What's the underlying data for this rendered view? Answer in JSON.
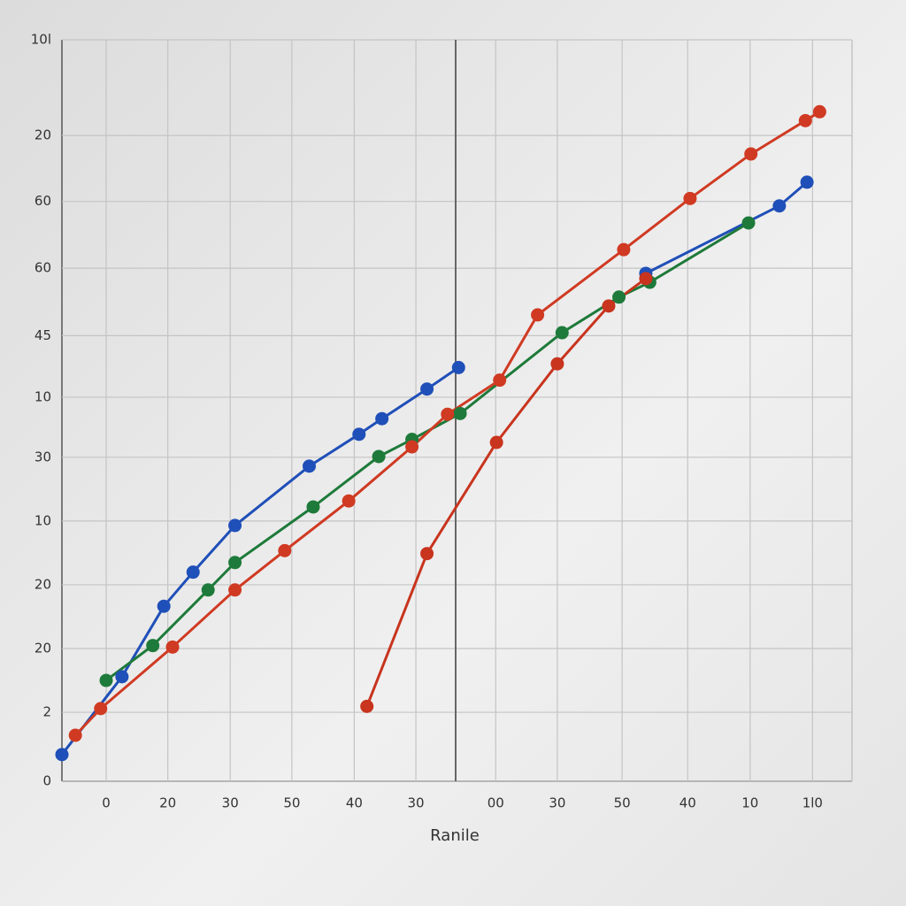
{
  "chart_data": {
    "type": "line",
    "xlabel": "Ranile",
    "xlim": [
      0,
      100
    ],
    "ylim": [
      0,
      100
    ],
    "grid": true,
    "xticks": [
      {
        "value": 5.6,
        "label": "0"
      },
      {
        "value": 13.4,
        "label": "20"
      },
      {
        "value": 21.3,
        "label": "30"
      },
      {
        "value": 29.1,
        "label": "50"
      },
      {
        "value": 37.0,
        "label": "40"
      },
      {
        "value": 44.8,
        "label": "30"
      },
      {
        "value": 54.9,
        "label": "00"
      },
      {
        "value": 62.7,
        "label": "30"
      },
      {
        "value": 70.9,
        "label": "50"
      },
      {
        "value": 79.2,
        "label": "40"
      },
      {
        "value": 87.1,
        "label": "10"
      },
      {
        "value": 95.0,
        "label": "1l0"
      }
    ],
    "yticks": [
      0,
      {
        "value": 9.3,
        "label": "2"
      },
      {
        "value": 17.9,
        "label": "20"
      },
      {
        "value": 26.5,
        "label": "20"
      },
      {
        "value": 35.1,
        "label": "10"
      },
      {
        "value": 43.7,
        "label": "30"
      },
      {
        "value": 51.8,
        "label": "10"
      },
      {
        "value": 60.1,
        "label": "45"
      },
      {
        "value": 69.2,
        "label": "60"
      },
      {
        "value": 78.2,
        "label": "60"
      },
      {
        "value": 87.1,
        "label": "20"
      },
      {
        "value": 100,
        "label": "10l"
      }
    ],
    "series": [
      {
        "color": "#1f4fb8",
        "x": [
          0,
          7.6,
          12.9,
          16.6,
          21.9,
          31.3,
          37.6,
          40.5,
          46.2,
          50.2,
          62.0,
          73.9,
          90.8,
          94.3
        ],
        "values": [
          3.6,
          14.1,
          23.6,
          28.2,
          34.5,
          42.5,
          46.8,
          48.9,
          52.9,
          55.8,
          null,
          68.5,
          77.6,
          80.8
        ]
      },
      {
        "color": "#1e7a3a",
        "x": [
          5.6,
          11.5,
          18.5,
          21.9,
          31.8,
          40.1,
          44.3,
          50.4,
          63.3,
          70.5,
          74.4,
          86.9
        ],
        "values": [
          13.6,
          18.3,
          25.8,
          29.5,
          37.0,
          43.8,
          46.1,
          49.6,
          60.5,
          65.3,
          67.3,
          75.3
        ]
      },
      {
        "color": "#d03a22",
        "x": [
          1.7,
          4.9,
          14.0,
          21.9,
          28.2,
          36.3,
          44.3,
          48.8,
          55.4,
          60.2,
          71.1,
          79.5,
          87.2,
          94.1,
          95.9
        ],
        "values": [
          6.2,
          9.8,
          18.1,
          25.8,
          31.1,
          37.8,
          45.1,
          49.5,
          54.1,
          62.9,
          71.7,
          78.6,
          84.6,
          89.1,
          90.3
        ]
      },
      {
        "color": "#c8341e",
        "x": [
          38.6,
          46.2,
          55.0,
          62.7,
          69.2,
          73.9
        ],
        "values": [
          10.1,
          30.7,
          45.7,
          56.3,
          64.1,
          67.8
        ]
      }
    ]
  }
}
